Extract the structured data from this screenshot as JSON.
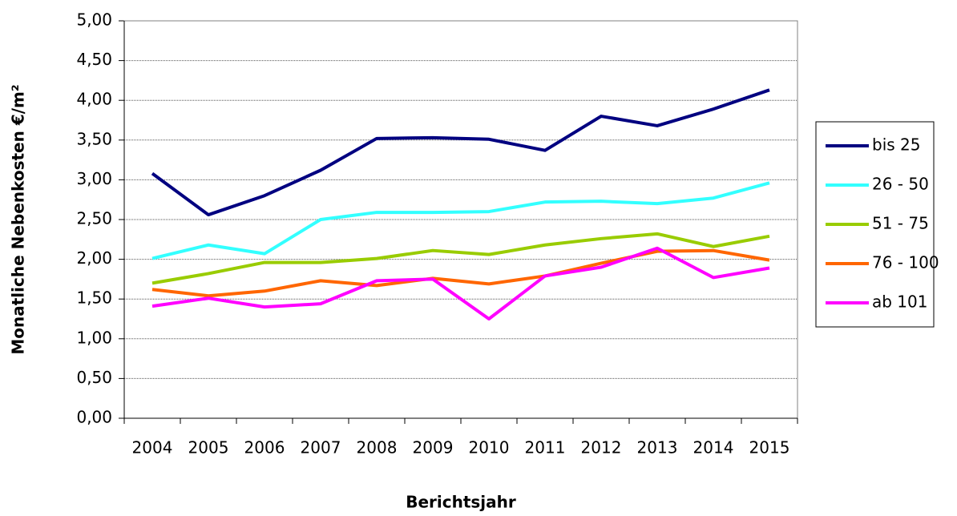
{
  "chart_data": {
    "type": "line",
    "x_label": "Berichtsjahr",
    "y_label": "Monatliche Nebenkosten €/m²",
    "categories": [
      "2004",
      "2005",
      "2006",
      "2007",
      "2008",
      "2009",
      "2010",
      "2011",
      "2012",
      "2013",
      "2014",
      "2015"
    ],
    "series": [
      {
        "name": "bis 25",
        "color": "#000080",
        "values": [
          3.08,
          2.56,
          2.8,
          3.12,
          3.52,
          3.53,
          3.51,
          3.37,
          3.8,
          3.68,
          3.89,
          4.13
        ]
      },
      {
        "name": "26 - 50",
        "color": "#33ffff",
        "values": [
          2.01,
          2.18,
          2.07,
          2.5,
          2.59,
          2.59,
          2.6,
          2.72,
          2.73,
          2.7,
          2.77,
          2.96
        ]
      },
      {
        "name": "51 - 75",
        "color": "#99cc00",
        "values": [
          1.7,
          1.82,
          1.96,
          1.96,
          2.01,
          2.11,
          2.06,
          2.18,
          2.26,
          2.32,
          2.16,
          2.29
        ]
      },
      {
        "name": "76 - 100",
        "color": "#ff6600",
        "values": [
          1.62,
          1.54,
          1.6,
          1.73,
          1.67,
          1.76,
          1.69,
          1.79,
          1.95,
          2.1,
          2.11,
          1.99
        ]
      },
      {
        "name": "ab 101",
        "color": "#ff00ff",
        "values": [
          1.41,
          1.51,
          1.4,
          1.44,
          1.73,
          1.75,
          1.25,
          1.79,
          1.9,
          2.14,
          1.77,
          1.89
        ]
      }
    ],
    "ylim": [
      0,
      5
    ],
    "yticks": [
      {
        "value": 0,
        "label": "0,00"
      },
      {
        "value": 0.5,
        "label": "0,50"
      },
      {
        "value": 1,
        "label": "1,00"
      },
      {
        "value": 1.5,
        "label": "1,50"
      },
      {
        "value": 2,
        "label": "2,00"
      },
      {
        "value": 2.5,
        "label": "2,50"
      },
      {
        "value": 3,
        "label": "3,00"
      },
      {
        "value": 3.5,
        "label": "3,50"
      },
      {
        "value": 4,
        "label": "4,00"
      },
      {
        "value": 4.5,
        "label": "4,50"
      },
      {
        "value": 5,
        "label": "5,00"
      }
    ],
    "grid": true,
    "legend": "right"
  }
}
